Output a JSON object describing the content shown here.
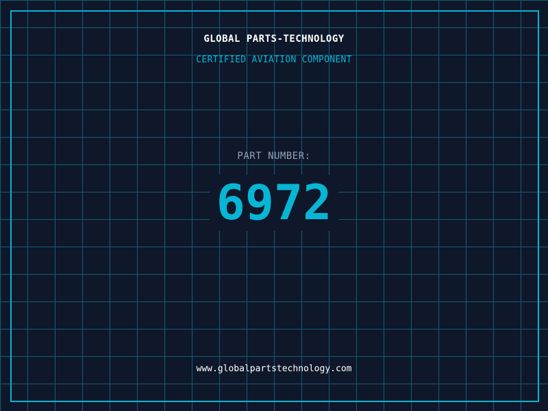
{
  "header": {
    "company": "GLOBAL PARTS-TECHNOLOGY",
    "subtitle": "CERTIFIED AVIATION COMPONENT"
  },
  "part": {
    "label": "PART NUMBER:",
    "number": "6972"
  },
  "footer": {
    "url": "www.globalpartstechnology.com"
  },
  "colors": {
    "background": "#0f172a",
    "accent": "#06b6d4",
    "grid": "#155e75"
  }
}
